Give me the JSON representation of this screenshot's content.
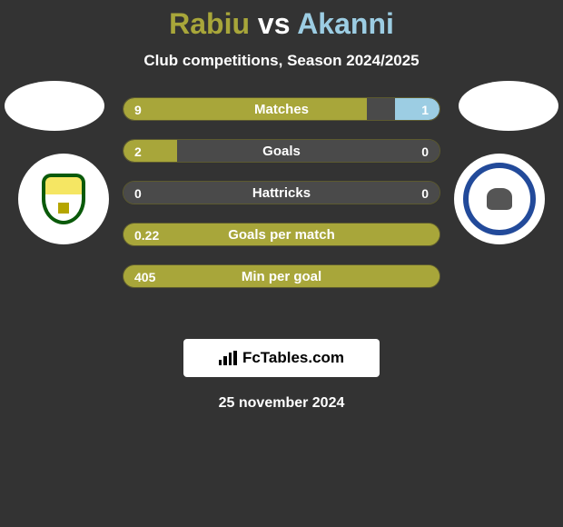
{
  "header": {
    "player1_name": "Rabiu",
    "vs_text": "vs",
    "player2_name": "Akanni",
    "subtitle": "Club competitions, Season 2024/2025",
    "player1_color": "#a8a63a",
    "player2_color": "#9ccde3"
  },
  "stats": [
    {
      "label": "Matches",
      "left_value": "9",
      "right_value": "1",
      "left_fill_pct": 77,
      "right_fill_pct": 14,
      "bar_bg": "#4a4a4a",
      "left_color": "#a8a63a",
      "right_color": "#9ccde3"
    },
    {
      "label": "Goals",
      "left_value": "2",
      "right_value": "0",
      "left_fill_pct": 17,
      "right_fill_pct": 0,
      "bar_bg": "#4a4a4a",
      "left_color": "#a8a63a",
      "right_color": "#9ccde3"
    },
    {
      "label": "Hattricks",
      "left_value": "0",
      "right_value": "0",
      "left_fill_pct": 0,
      "right_fill_pct": 0,
      "bar_bg": "#4a4a4a",
      "left_color": "#a8a63a",
      "right_color": "#9ccde3"
    },
    {
      "label": "Goals per match",
      "left_value": "0.22",
      "right_value": "",
      "left_fill_pct": 100,
      "right_fill_pct": 0,
      "bar_bg": "#a8a63a",
      "left_color": "#a8a63a",
      "right_color": "#9ccde3"
    },
    {
      "label": "Min per goal",
      "left_value": "405",
      "right_value": "",
      "left_fill_pct": 100,
      "right_fill_pct": 0,
      "bar_bg": "#a8a63a",
      "left_color": "#a8a63a",
      "right_color": "#9ccde3"
    }
  ],
  "branding": {
    "text": "FcTables.com"
  },
  "date_text": "25 november 2024",
  "theme": {
    "background_color": "#333333",
    "text_color": "#ffffff"
  }
}
